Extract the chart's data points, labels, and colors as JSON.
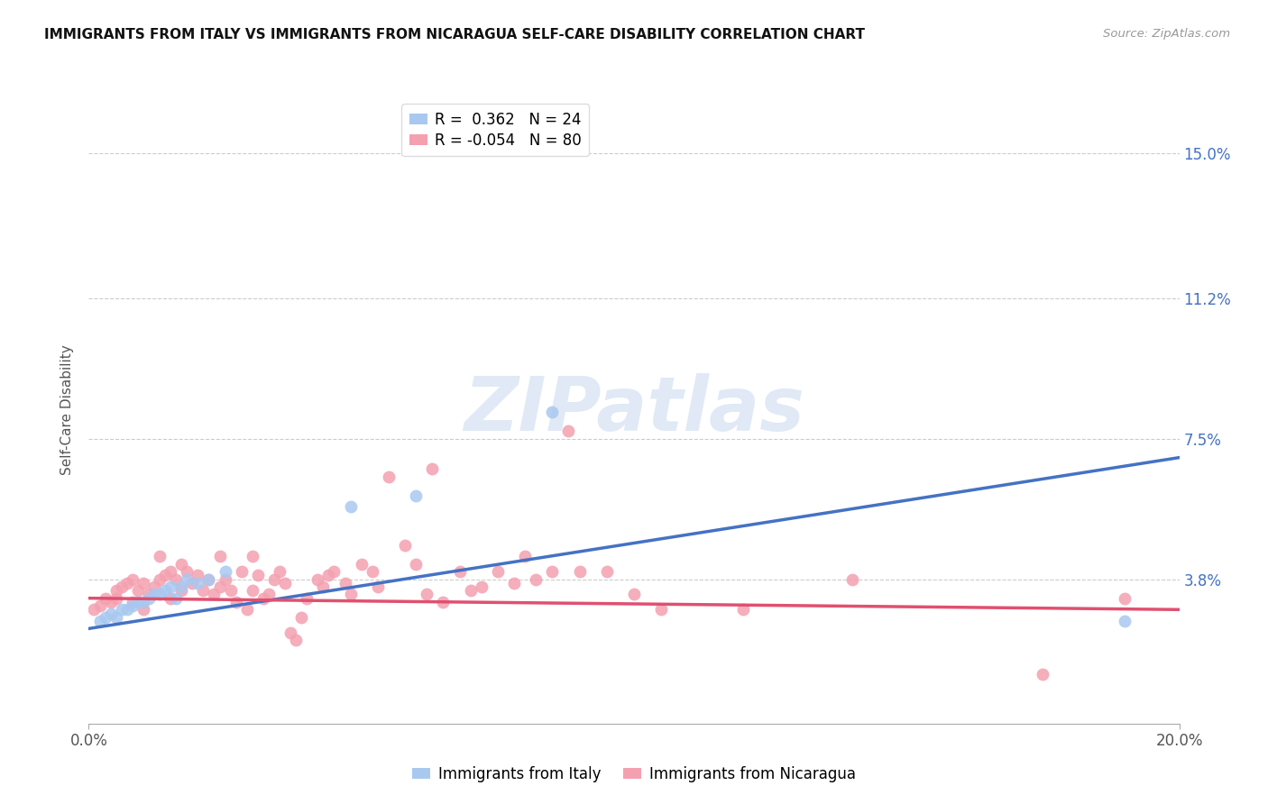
{
  "title": "IMMIGRANTS FROM ITALY VS IMMIGRANTS FROM NICARAGUA SELF-CARE DISABILITY CORRELATION CHART",
  "source": "Source: ZipAtlas.com",
  "xlabel_italy": "Immigrants from Italy",
  "xlabel_nicaragua": "Immigrants from Nicaragua",
  "ylabel": "Self-Care Disability",
  "xlim": [
    0.0,
    0.2
  ],
  "ylim": [
    0.0,
    0.165
  ],
  "ytick_labels": [
    "3.8%",
    "7.5%",
    "11.2%",
    "15.0%"
  ],
  "ytick_values": [
    0.038,
    0.075,
    0.112,
    0.15
  ],
  "xtick_labels": [
    "0.0%",
    "20.0%"
  ],
  "xtick_values": [
    0.0,
    0.2
  ],
  "legend_italy_R": "0.362",
  "legend_italy_N": "24",
  "legend_nicaragua_R": "-0.054",
  "legend_nicaragua_N": "80",
  "italy_color": "#a8c8f0",
  "nicaragua_color": "#f4a0b0",
  "italy_line_color": "#4472c4",
  "nicaragua_line_color": "#e05070",
  "watermark": "ZIPatlas",
  "italy_x": [
    0.002,
    0.003,
    0.004,
    0.005,
    0.006,
    0.007,
    0.008,
    0.009,
    0.01,
    0.011,
    0.012,
    0.013,
    0.014,
    0.015,
    0.016,
    0.017,
    0.018,
    0.02,
    0.022,
    0.025,
    0.048,
    0.06,
    0.085,
    0.19
  ],
  "italy_y": [
    0.027,
    0.028,
    0.029,
    0.028,
    0.03,
    0.03,
    0.031,
    0.032,
    0.032,
    0.033,
    0.034,
    0.034,
    0.035,
    0.036,
    0.033,
    0.036,
    0.038,
    0.037,
    0.038,
    0.04,
    0.057,
    0.06,
    0.082,
    0.027
  ],
  "nicaragua_x": [
    0.001,
    0.002,
    0.003,
    0.004,
    0.005,
    0.005,
    0.006,
    0.007,
    0.008,
    0.008,
    0.009,
    0.01,
    0.01,
    0.011,
    0.012,
    0.013,
    0.013,
    0.014,
    0.015,
    0.015,
    0.016,
    0.017,
    0.017,
    0.018,
    0.019,
    0.02,
    0.021,
    0.022,
    0.023,
    0.024,
    0.024,
    0.025,
    0.026,
    0.027,
    0.028,
    0.029,
    0.03,
    0.03,
    0.031,
    0.032,
    0.033,
    0.034,
    0.035,
    0.036,
    0.037,
    0.038,
    0.039,
    0.04,
    0.042,
    0.043,
    0.044,
    0.045,
    0.047,
    0.048,
    0.05,
    0.052,
    0.053,
    0.055,
    0.058,
    0.06,
    0.062,
    0.063,
    0.065,
    0.068,
    0.07,
    0.072,
    0.075,
    0.078,
    0.08,
    0.082,
    0.085,
    0.088,
    0.09,
    0.095,
    0.1,
    0.105,
    0.12,
    0.14,
    0.175,
    0.19
  ],
  "nicaragua_y": [
    0.03,
    0.031,
    0.033,
    0.032,
    0.035,
    0.033,
    0.036,
    0.037,
    0.038,
    0.032,
    0.035,
    0.037,
    0.03,
    0.034,
    0.036,
    0.038,
    0.044,
    0.039,
    0.04,
    0.033,
    0.038,
    0.042,
    0.035,
    0.04,
    0.037,
    0.039,
    0.035,
    0.038,
    0.034,
    0.036,
    0.044,
    0.038,
    0.035,
    0.032,
    0.04,
    0.03,
    0.035,
    0.044,
    0.039,
    0.033,
    0.034,
    0.038,
    0.04,
    0.037,
    0.024,
    0.022,
    0.028,
    0.033,
    0.038,
    0.036,
    0.039,
    0.04,
    0.037,
    0.034,
    0.042,
    0.04,
    0.036,
    0.065,
    0.047,
    0.042,
    0.034,
    0.067,
    0.032,
    0.04,
    0.035,
    0.036,
    0.04,
    0.037,
    0.044,
    0.038,
    0.04,
    0.077,
    0.04,
    0.04,
    0.034,
    0.03,
    0.03,
    0.038,
    0.013,
    0.033
  ],
  "italy_line_x0": 0.0,
  "italy_line_y0": 0.025,
  "italy_line_x1": 0.2,
  "italy_line_y1": 0.07,
  "nic_line_x0": 0.0,
  "nic_line_y0": 0.033,
  "nic_line_x1": 0.2,
  "nic_line_y1": 0.03
}
